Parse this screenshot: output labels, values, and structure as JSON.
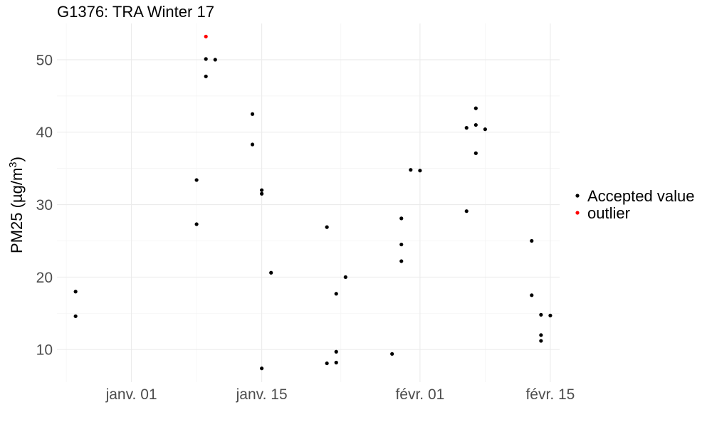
{
  "chart_data": {
    "type": "scatter",
    "title": "G1376: TRA Winter 17",
    "ylabel": "PM25 (µg/m³)",
    "ylabel_prefix": "PM25 (µg/m",
    "ylabel_superscript": "3",
    "ylabel_suffix": ")",
    "xlabel": "",
    "xlim": [
      "2016-12-24",
      "2017-02-16"
    ],
    "ylim": [
      5.5,
      55
    ],
    "x_ticks": [
      {
        "date": "2017-01-01",
        "label": "janv. 01"
      },
      {
        "date": "2017-01-15",
        "label": "janv. 15"
      },
      {
        "date": "2017-02-01",
        "label": "févr. 01"
      },
      {
        "date": "2017-02-15",
        "label": "févr. 15"
      }
    ],
    "y_ticks": [
      10,
      20,
      30,
      40,
      50
    ],
    "grid": true,
    "legend_position": "right",
    "series": [
      {
        "name": "Accepted value",
        "color": "#000000",
        "points": [
          {
            "x": "2016-12-26",
            "y": 14.6
          },
          {
            "x": "2016-12-26",
            "y": 18.0
          },
          {
            "x": "2017-01-08",
            "y": 27.3
          },
          {
            "x": "2017-01-08",
            "y": 33.4
          },
          {
            "x": "2017-01-09",
            "y": 47.7
          },
          {
            "x": "2017-01-09",
            "y": 50.1
          },
          {
            "x": "2017-01-10",
            "y": 50.0
          },
          {
            "x": "2017-01-14",
            "y": 38.3
          },
          {
            "x": "2017-01-14",
            "y": 42.5
          },
          {
            "x": "2017-01-15",
            "y": 31.5
          },
          {
            "x": "2017-01-15",
            "y": 32.0
          },
          {
            "x": "2017-01-15",
            "y": 7.4
          },
          {
            "x": "2017-01-16",
            "y": 20.6
          },
          {
            "x": "2017-01-22",
            "y": 26.9
          },
          {
            "x": "2017-01-22",
            "y": 8.1
          },
          {
            "x": "2017-01-23",
            "y": 17.7
          },
          {
            "x": "2017-01-23",
            "y": 9.7
          },
          {
            "x": "2017-01-23",
            "y": 8.2
          },
          {
            "x": "2017-01-24",
            "y": 20.0
          },
          {
            "x": "2017-01-29",
            "y": 9.4
          },
          {
            "x": "2017-01-30",
            "y": 28.1
          },
          {
            "x": "2017-01-30",
            "y": 24.5
          },
          {
            "x": "2017-01-30",
            "y": 22.2
          },
          {
            "x": "2017-01-31",
            "y": 34.8
          },
          {
            "x": "2017-02-01",
            "y": 34.7
          },
          {
            "x": "2017-02-06",
            "y": 40.6
          },
          {
            "x": "2017-02-06",
            "y": 29.1
          },
          {
            "x": "2017-02-07",
            "y": 43.3
          },
          {
            "x": "2017-02-07",
            "y": 41.0
          },
          {
            "x": "2017-02-07",
            "y": 37.1
          },
          {
            "x": "2017-02-08",
            "y": 40.4
          },
          {
            "x": "2017-02-13",
            "y": 17.5
          },
          {
            "x": "2017-02-13",
            "y": 25.0
          },
          {
            "x": "2017-02-14",
            "y": 14.8
          },
          {
            "x": "2017-02-14",
            "y": 12.0
          },
          {
            "x": "2017-02-14",
            "y": 11.2
          },
          {
            "x": "2017-02-15",
            "y": 14.7
          }
        ]
      },
      {
        "name": "outlier",
        "color": "#ff0000",
        "points": [
          {
            "x": "2017-01-09",
            "y": 53.2
          }
        ]
      }
    ]
  }
}
